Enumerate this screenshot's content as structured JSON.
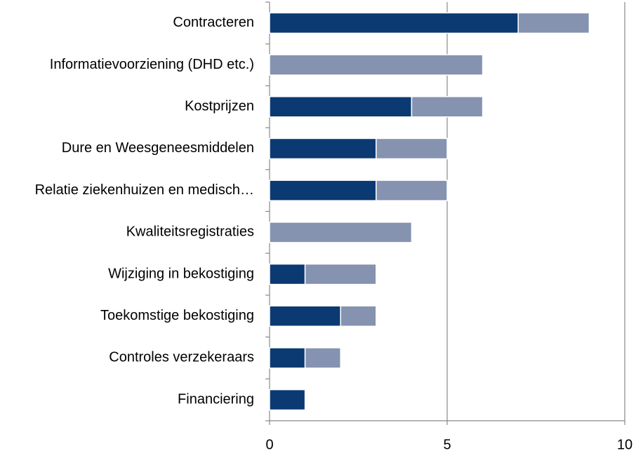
{
  "chart_data": {
    "type": "stacked-barh",
    "categories": [
      "Contracteren",
      "Informatievoorziening (DHD etc.)",
      "Kostprijzen",
      "Dure en Weesgeneesmiddelen",
      "Relatie ziekenhuizen en medisch…",
      "Kwaliteitsregistraties",
      "Wijziging in bekostiging",
      "Toekomstige bekostiging",
      "Controles verzekeraars",
      "Financiering"
    ],
    "series": [
      {
        "color": "#0b3a72",
        "values": [
          7,
          0,
          4,
          3,
          3,
          0,
          1,
          2,
          1,
          1
        ]
      },
      {
        "color": "#8592b0",
        "values": [
          2,
          6,
          2,
          2,
          2,
          4,
          2,
          1,
          1,
          0
        ]
      }
    ],
    "xlim": [
      0,
      10
    ],
    "xticks": [
      0,
      5,
      10
    ],
    "grid": true
  }
}
